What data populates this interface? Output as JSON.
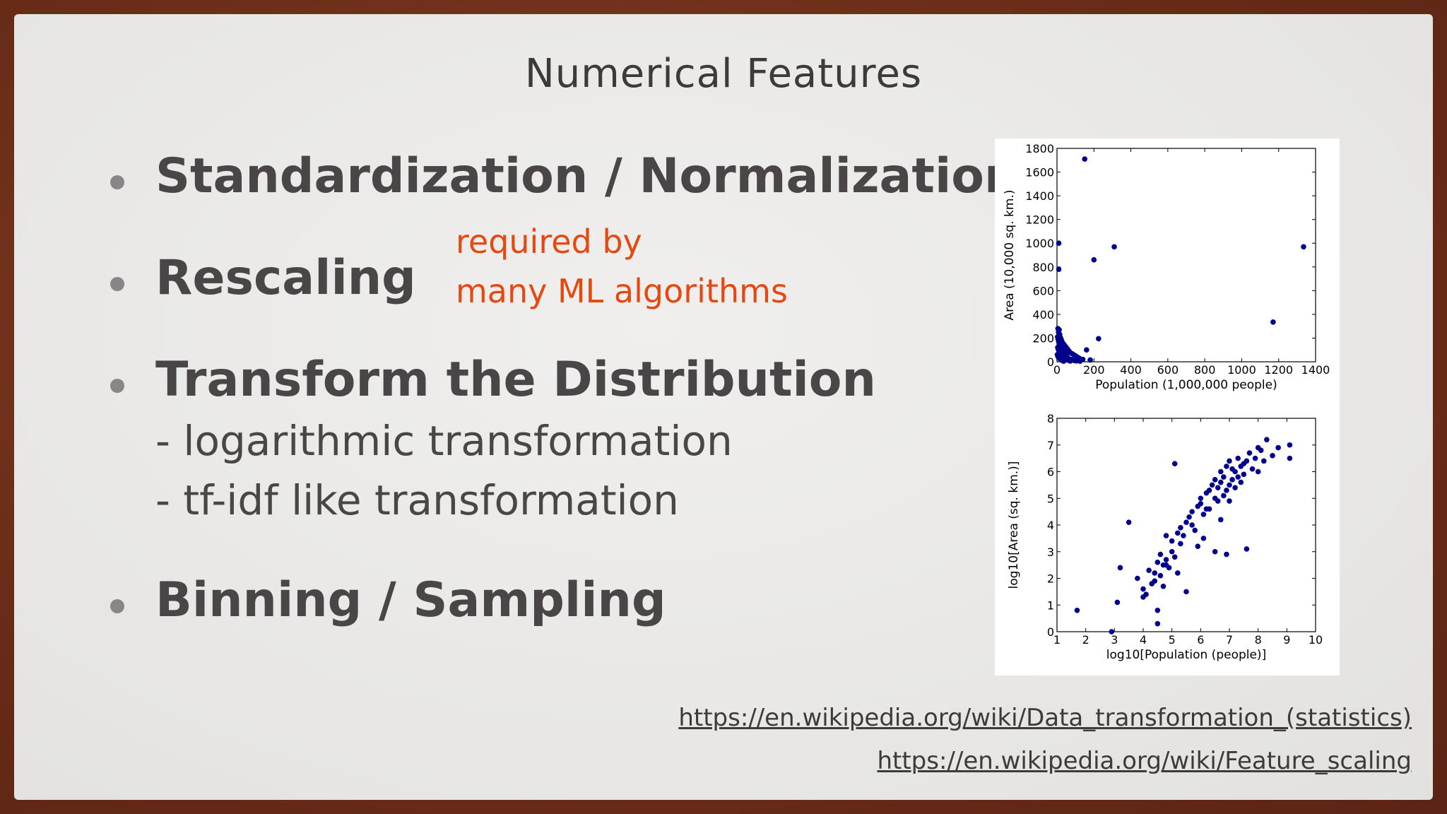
{
  "slide": {
    "title": "Numerical Features",
    "bullets": [
      "Standardization / Normalization",
      "Rescaling",
      "Transform the Distribution",
      "Binning / Sampling"
    ],
    "sub_items": [
      "- logarithmic transformation",
      "- tf-idf like transformation"
    ],
    "note_line1": "required by",
    "note_line2": "many ML algorithms",
    "links": [
      "https://en.wikipedia.org/wiki/Data_transformation_(statistics)",
      "https://en.wikipedia.org/wiki/Feature_scaling"
    ]
  },
  "colors": {
    "note": "#e34a12",
    "text": "#4a4647",
    "points": "#00008b"
  },
  "chart_data": [
    {
      "type": "scatter",
      "title": "",
      "xlabel": "Population (1,000,000 people)",
      "ylabel": "Area (10,000 sq. km.)",
      "xlim": [
        0,
        1400
      ],
      "ylim": [
        0,
        1800
      ],
      "xticks": [
        0,
        200,
        400,
        600,
        800,
        1000,
        1200,
        1400
      ],
      "yticks": [
        0,
        200,
        400,
        600,
        800,
        1000,
        1200,
        1400,
        1600,
        1800
      ],
      "grid": false,
      "x": [
        150,
        310,
        1335,
        10,
        200,
        10,
        1170,
        225,
        5,
        8,
        12,
        15,
        20,
        25,
        30,
        35,
        40,
        45,
        50,
        55,
        60,
        65,
        70,
        80,
        90,
        100,
        110,
        120,
        140,
        160,
        180,
        3,
        6,
        9,
        14,
        18,
        22,
        28,
        33,
        38,
        42,
        48,
        53,
        58,
        64,
        75,
        85,
        95,
        105,
        125,
        4,
        7,
        11,
        16,
        21,
        27,
        32,
        37,
        44,
        52,
        62,
        72,
        2,
        5,
        9,
        13,
        19,
        24,
        29,
        36
      ],
      "y": [
        1710,
        970,
        970,
        1000,
        860,
        780,
        335,
        195,
        280,
        250,
        270,
        230,
        200,
        180,
        160,
        150,
        140,
        130,
        120,
        110,
        100,
        90,
        80,
        70,
        60,
        50,
        40,
        30,
        20,
        100,
        15,
        210,
        190,
        170,
        150,
        130,
        110,
        95,
        85,
        75,
        65,
        55,
        45,
        35,
        25,
        20,
        15,
        10,
        8,
        5,
        120,
        105,
        90,
        80,
        70,
        60,
        50,
        40,
        30,
        20,
        12,
        6,
        60,
        45,
        35,
        28,
        22,
        16,
        10,
        5
      ]
    },
    {
      "type": "scatter",
      "title": "",
      "xlabel": "log10[Population (people)]",
      "ylabel": "log10[Area (sq. km.)]",
      "xlim": [
        1,
        10
      ],
      "ylim": [
        0,
        8
      ],
      "xticks": [
        1,
        2,
        3,
        4,
        5,
        6,
        7,
        8,
        9,
        10
      ],
      "yticks": [
        0,
        1,
        2,
        3,
        4,
        5,
        6,
        7,
        8
      ],
      "grid": false,
      "x": [
        1.7,
        2.9,
        3.1,
        3.2,
        3.5,
        3.8,
        4.0,
        4.1,
        4.2,
        4.3,
        4.4,
        4.5,
        4.5,
        4.6,
        4.7,
        4.8,
        4.9,
        5.0,
        5.0,
        5.1,
        5.2,
        5.3,
        5.4,
        5.5,
        5.6,
        5.7,
        5.8,
        5.9,
        6.0,
        6.0,
        6.1,
        6.2,
        6.3,
        6.3,
        6.4,
        6.5,
        6.5,
        6.6,
        6.6,
        6.7,
        6.7,
        6.8,
        6.8,
        6.9,
        6.9,
        7.0,
        7.0,
        7.0,
        7.1,
        7.1,
        7.2,
        7.2,
        7.3,
        7.3,
        7.4,
        7.4,
        7.5,
        7.5,
        7.6,
        7.7,
        7.8,
        7.9,
        8.0,
        8.1,
        8.2,
        8.3,
        8.5,
        8.7,
        9.1,
        9.1,
        4.5,
        4.6,
        4.0,
        4.4,
        4.8,
        5.2,
        5.5,
        5.1,
        5.9,
        6.1,
        6.5,
        6.9,
        7.6,
        8.0,
        4.7,
        5.3,
        4.8,
        6.7,
        5.7,
        6.2
      ],
      "y": [
        0.8,
        0.0,
        1.1,
        2.4,
        4.1,
        2.0,
        1.6,
        1.4,
        2.3,
        1.8,
        2.2,
        2.6,
        0.8,
        2.9,
        2.5,
        2.7,
        2.4,
        3.0,
        3.4,
        2.8,
        3.7,
        3.9,
        3.6,
        4.1,
        4.3,
        4.5,
        3.8,
        4.7,
        4.8,
        5.0,
        4.4,
        5.2,
        5.3,
        4.6,
        5.5,
        5.0,
        5.7,
        5.4,
        4.9,
        5.6,
        6.0,
        5.1,
        5.8,
        5.3,
        6.2,
        4.9,
        5.5,
        6.4,
        5.7,
        6.1,
        5.4,
        6.0,
        5.8,
        6.5,
        6.2,
        5.6,
        6.3,
        5.9,
        6.4,
        6.7,
        6.1,
        6.5,
        6.0,
        6.8,
        6.4,
        7.2,
        6.6,
        6.9,
        7.0,
        6.5,
        0.3,
        2.1,
        1.3,
        1.9,
        2.5,
        2.2,
        1.5,
        6.3,
        3.2,
        3.5,
        3.0,
        2.9,
        3.1,
        6.9,
        1.7,
        3.3,
        3.6,
        4.2,
        4.0,
        4.6
      ]
    }
  ]
}
